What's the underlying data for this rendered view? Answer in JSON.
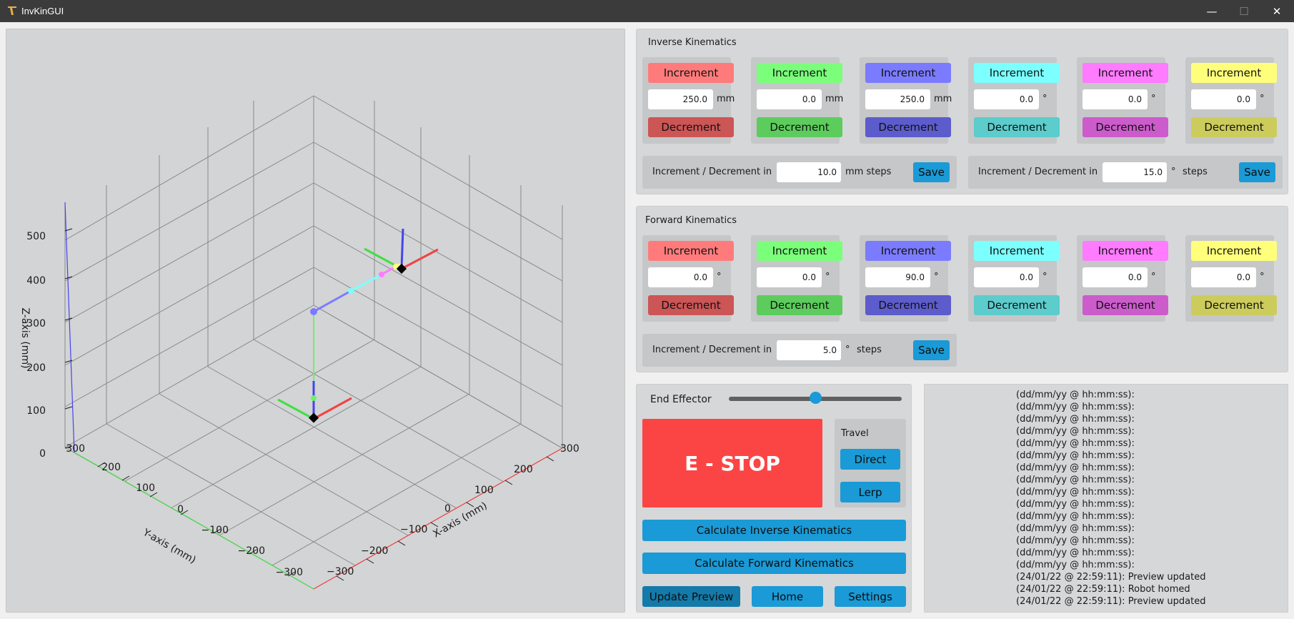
{
  "window": {
    "title": "InvKinGUI",
    "minimize": "—",
    "maximize": "☐",
    "close": "✕"
  },
  "plot": {
    "z_label": "Z-axis (mm)",
    "y_label": "Y-axis (mm)",
    "x_label": "X-axis (mm)",
    "z_ticks": [
      "500",
      "400",
      "300",
      "200",
      "100",
      "0"
    ],
    "y_ticks": [
      "300",
      "200",
      "100",
      "0",
      "−100",
      "−200",
      "−300"
    ],
    "x_ticks": [
      "300",
      "200",
      "100",
      "0",
      "−100",
      "−200",
      "−300"
    ],
    "x_axis_color": "#ee4444",
    "y_axis_color": "#44dd44",
    "z_axis_color": "#4444ee"
  },
  "ik": {
    "title": "Inverse Kinematics",
    "joints": [
      {
        "inc": "Increment",
        "dec": "Decrement",
        "value": "250.0",
        "unit": "mm",
        "inc_color": "#ff7b7b",
        "dec_color": "#cc5555"
      },
      {
        "inc": "Increment",
        "dec": "Decrement",
        "value": "0.0",
        "unit": "mm",
        "inc_color": "#7bff7b",
        "dec_color": "#5ccc5c"
      },
      {
        "inc": "Increment",
        "dec": "Decrement",
        "value": "250.0",
        "unit": "mm",
        "inc_color": "#7b7bff",
        "dec_color": "#5c5ccc"
      },
      {
        "inc": "Increment",
        "dec": "Decrement",
        "value": "0.0",
        "unit": "°",
        "inc_color": "#7bffff",
        "dec_color": "#5ccccc"
      },
      {
        "inc": "Increment",
        "dec": "Decrement",
        "value": "0.0",
        "unit": "°",
        "inc_color": "#ff7bff",
        "dec_color": "#cc5ccc"
      },
      {
        "inc": "Increment",
        "dec": "Decrement",
        "value": "0.0",
        "unit": "°",
        "inc_color": "#ffff7b",
        "dec_color": "#cccc5c"
      }
    ],
    "step_linear": {
      "label": "Increment / Decrement in",
      "value": "10.0",
      "unit": "mm steps",
      "save": "Save"
    },
    "step_angular": {
      "label": "Increment / Decrement in",
      "value": "15.0",
      "unit_symbol": "°",
      "unit": "steps",
      "save": "Save"
    }
  },
  "fk": {
    "title": "Forward Kinematics",
    "joints": [
      {
        "inc": "Increment",
        "dec": "Decrement",
        "value": "0.0",
        "unit": "°",
        "inc_color": "#ff7b7b",
        "dec_color": "#cc5555"
      },
      {
        "inc": "Increment",
        "dec": "Decrement",
        "value": "0.0",
        "unit": "°",
        "inc_color": "#7bff7b",
        "dec_color": "#5ccc5c"
      },
      {
        "inc": "Increment",
        "dec": "Decrement",
        "value": "90.0",
        "unit": "°",
        "inc_color": "#7b7bff",
        "dec_color": "#5c5ccc"
      },
      {
        "inc": "Increment",
        "dec": "Decrement",
        "value": "0.0",
        "unit": "°",
        "inc_color": "#7bffff",
        "dec_color": "#5ccccc"
      },
      {
        "inc": "Increment",
        "dec": "Decrement",
        "value": "0.0",
        "unit": "°",
        "inc_color": "#ff7bff",
        "dec_color": "#cc5ccc"
      },
      {
        "inc": "Increment",
        "dec": "Decrement",
        "value": "0.0",
        "unit": "°",
        "inc_color": "#ffff7b",
        "dec_color": "#cccc5c"
      }
    ],
    "step_angular": {
      "label": "Increment / Decrement in",
      "value": "5.0",
      "unit_symbol": "°",
      "unit": "steps",
      "save": "Save"
    }
  },
  "controls": {
    "end_effector_label": "End Effector",
    "end_effector_value": 0.49,
    "estop": "E - STOP",
    "travel_label": "Travel",
    "direct": "Direct",
    "lerp": "Lerp",
    "calc_ik": "Calculate Inverse Kinematics",
    "calc_fk": "Calculate Forward Kinematics",
    "update_preview": "Update Preview",
    "home": "Home",
    "settings": "Settings"
  },
  "log": [
    "(dd/mm/yy @ hh:mm:ss):",
    "(dd/mm/yy @ hh:mm:ss):",
    "(dd/mm/yy @ hh:mm:ss):",
    "(dd/mm/yy @ hh:mm:ss):",
    "(dd/mm/yy @ hh:mm:ss):",
    "(dd/mm/yy @ hh:mm:ss):",
    "(dd/mm/yy @ hh:mm:ss):",
    "(dd/mm/yy @ hh:mm:ss):",
    "(dd/mm/yy @ hh:mm:ss):",
    "(dd/mm/yy @ hh:mm:ss):",
    "(dd/mm/yy @ hh:mm:ss):",
    "(dd/mm/yy @ hh:mm:ss):",
    "(dd/mm/yy @ hh:mm:ss):",
    "(dd/mm/yy @ hh:mm:ss):",
    "(dd/mm/yy @ hh:mm:ss):",
    "(24/01/22 @ 22:59:11): Preview updated",
    "(24/01/22 @ 22:59:11): Robot homed",
    "(24/01/22 @ 22:59:11): Preview updated"
  ]
}
